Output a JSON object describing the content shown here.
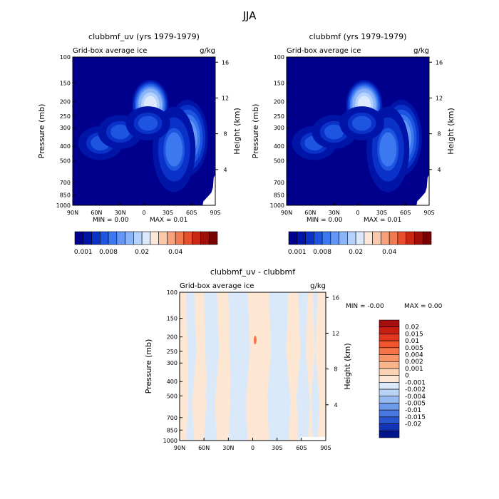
{
  "page_title": "JJA",
  "chart_data": [
    {
      "type": "heatmap",
      "title": "clubbmf_uv (yrs 1979-1979)",
      "left_label": "Grid-box average ice",
      "units": "g/kg",
      "ylabel": "Pressure (mb)",
      "ylabel_right": "Height (km)",
      "x_ticks": [
        "90N",
        "60N",
        "30N",
        "0",
        "30S",
        "60S",
        "90S"
      ],
      "y_ticks": [
        "100",
        "150",
        "200",
        "250",
        "300",
        "400",
        "500",
        "700",
        "850",
        "1000"
      ],
      "y_right_ticks": [
        "16",
        "12",
        "8",
        "4"
      ],
      "stats": {
        "min_label": "MIN =",
        "min": "0.00",
        "max_label": "MAX =",
        "max": "0.01"
      },
      "colorbar": {
        "labels": [
          "0.001",
          "0.008",
          "0.02",
          "0.04"
        ],
        "colors": [
          "#00008c",
          "#0014a8",
          "#0a32c8",
          "#1e55e0",
          "#3c78f0",
          "#6496f5",
          "#8cb4f8",
          "#b4d2fb",
          "#dce9fd",
          "#fde7d9",
          "#fac8aa",
          "#f7a27a",
          "#f27a50",
          "#e8502d",
          "#c82814",
          "#a01008",
          "#780000"
        ]
      },
      "series": [
        {
          "lat": -8,
          "p": 210,
          "peak": 0.012
        },
        {
          "lat": -55,
          "p": 350,
          "peak": 0.007
        },
        {
          "lat": -38,
          "p": 420,
          "peak": 0.004
        },
        {
          "lat": 55,
          "p": 380,
          "peak": 0.003
        },
        {
          "lat": 30,
          "p": 320,
          "peak": 0.003
        },
        {
          "lat": -5,
          "p": 280,
          "peak": 0.003
        }
      ]
    },
    {
      "type": "heatmap",
      "title": "clubbmf (yrs 1979-1979)",
      "left_label": "Grid-box average ice",
      "units": "g/kg",
      "ylabel": "Pressure (mb)",
      "ylabel_right": "Height (km)",
      "x_ticks": [
        "90N",
        "60N",
        "30N",
        "0",
        "30S",
        "60S",
        "90S"
      ],
      "y_ticks": [
        "100",
        "150",
        "200",
        "250",
        "300",
        "400",
        "500",
        "700",
        "850",
        "1000"
      ],
      "y_right_ticks": [
        "16",
        "12",
        "8",
        "4"
      ],
      "stats": {
        "min_label": "MIN =",
        "min": "0.00",
        "max_label": "MAX =",
        "max": "0.01"
      },
      "colorbar": {
        "labels": [
          "0.001",
          "0.008",
          "0.02",
          "0.04"
        ],
        "colors": [
          "#00008c",
          "#0014a8",
          "#0a32c8",
          "#1e55e0",
          "#3c78f0",
          "#6496f5",
          "#8cb4f8",
          "#b4d2fb",
          "#dce9fd",
          "#fde7d9",
          "#fac8aa",
          "#f7a27a",
          "#f27a50",
          "#e8502d",
          "#c82814",
          "#a01008",
          "#780000"
        ]
      },
      "series": [
        {
          "lat": -8,
          "p": 210,
          "peak": 0.012
        },
        {
          "lat": -55,
          "p": 350,
          "peak": 0.007
        },
        {
          "lat": -38,
          "p": 420,
          "peak": 0.004
        },
        {
          "lat": 55,
          "p": 380,
          "peak": 0.003
        },
        {
          "lat": 30,
          "p": 320,
          "peak": 0.003
        },
        {
          "lat": -5,
          "p": 280,
          "peak": 0.003
        }
      ]
    },
    {
      "type": "heatmap",
      "title": "clubbmf_uv - clubbmf",
      "left_label": "Grid-box average ice",
      "units": "g/kg",
      "ylabel": "Pressure (mb)",
      "ylabel_right": "Height (km)",
      "x_ticks": [
        "90N",
        "60N",
        "30N",
        "0",
        "30S",
        "60S",
        "90S"
      ],
      "y_ticks": [
        "100",
        "150",
        "200",
        "250",
        "300",
        "400",
        "500",
        "700",
        "850",
        "1000"
      ],
      "y_right_ticks": [
        "16",
        "12",
        "8",
        "4"
      ],
      "stats": {
        "min_label": "MIN =",
        "min": "-0.00",
        "max_label": "MAX =",
        "max": "0.00"
      },
      "colorbar": {
        "labels": [
          "0.02",
          "0.015",
          "0.01",
          "0.005",
          "0.004",
          "0.002",
          "0.001",
          "0",
          "-0.001",
          "-0.002",
          "-0.004",
          "-0.005",
          "-0.01",
          "-0.015",
          "-0.02"
        ],
        "colors": [
          "#a50f0f",
          "#c81e0f",
          "#e0371e",
          "#f0552d",
          "#f57548",
          "#f8966a",
          "#fab48c",
          "#fcd2b4",
          "#fde7d2",
          "#dae9fa",
          "#b8d3f6",
          "#96b9f0",
          "#6e9aea",
          "#4a78e1",
          "#2a55d0",
          "#1034b4",
          "#00148c"
        ]
      },
      "bands": [
        {
          "from": -90,
          "to": -80,
          "v": 0.0005
        },
        {
          "from": -80,
          "to": -74,
          "v": -0.0005
        },
        {
          "from": -74,
          "to": -68,
          "v": 0.0005
        },
        {
          "from": -68,
          "to": -56,
          "v": -0.0005
        },
        {
          "from": -56,
          "to": -44,
          "v": 0.0005
        },
        {
          "from": -44,
          "to": -20,
          "v": -0.0005
        },
        {
          "from": -20,
          "to": -8,
          "v": 0.0005
        },
        {
          "from": -8,
          "to": 6,
          "v": 0.0005
        },
        {
          "from": 6,
          "to": 30,
          "v": -0.0005
        },
        {
          "from": 30,
          "to": 44,
          "v": 0.0005
        },
        {
          "from": 44,
          "to": 60,
          "v": -0.0005
        },
        {
          "from": 60,
          "to": 72,
          "v": 0.0005
        },
        {
          "from": 72,
          "to": 82,
          "v": -0.0005
        },
        {
          "from": 82,
          "to": 90,
          "v": 0.0005
        }
      ]
    }
  ]
}
